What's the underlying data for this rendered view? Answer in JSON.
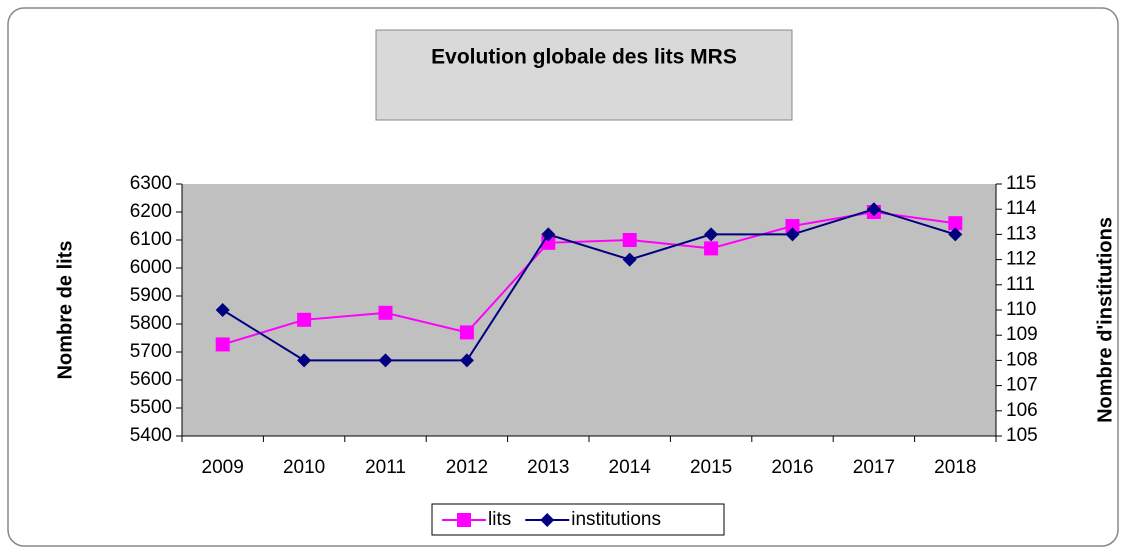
{
  "chart_data": {
    "type": "line",
    "title": "Evolution globale des lits MRS",
    "categories": [
      "2009",
      "2010",
      "2011",
      "2012",
      "2013",
      "2014",
      "2015",
      "2016",
      "2017",
      "2018"
    ],
    "series": [
      {
        "name": "lits",
        "color": "#ff00ff",
        "values": [
          5727,
          5815,
          5840,
          5770,
          6090,
          6100,
          6070,
          6150,
          6200,
          6160
        ]
      },
      {
        "name": "institutions",
        "color": "#000080",
        "axis": "y2",
        "values": [
          110,
          108,
          108,
          108,
          113,
          112,
          113,
          113,
          114,
          113
        ]
      }
    ],
    "ylabel": "Nombre de lits",
    "y2label": "Nombre d'institutions",
    "ylim": [
      5400,
      6300
    ],
    "yticks": [
      5400,
      5500,
      5600,
      5700,
      5800,
      5900,
      6000,
      6100,
      6200,
      6300
    ],
    "y2lim": [
      105,
      115
    ],
    "y2ticks": [
      105,
      106,
      107,
      108,
      109,
      110,
      111,
      112,
      113,
      114,
      115
    ],
    "grid": false,
    "legend": "bottom"
  }
}
